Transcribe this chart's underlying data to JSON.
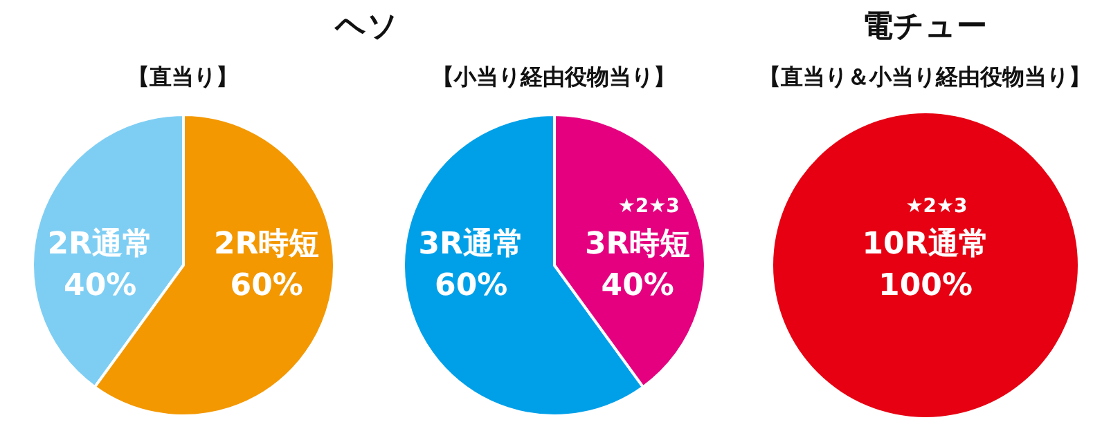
{
  "chart_data": [
    {
      "type": "pie",
      "title": "ヘソ",
      "subtitle": "【直当り】",
      "categories": [
        "2R通常",
        "2R時短"
      ],
      "values": [
        40,
        60
      ],
      "colors": [
        "#7ecef4",
        "#f39800"
      ],
      "value_labels": [
        "40%",
        "60%"
      ],
      "legend": false
    },
    {
      "type": "pie",
      "subtitle": "【小当り経由役物当り】",
      "categories": [
        "3R通常",
        "3R時短"
      ],
      "values": [
        60,
        40
      ],
      "colors": [
        "#00a0e9",
        "#e4007f"
      ],
      "value_labels": [
        "60%",
        "40%"
      ],
      "legend": false,
      "annotations": [
        {
          "text": "★2★3",
          "x": "3R時短"
        }
      ]
    },
    {
      "type": "pie",
      "title": "電チュー",
      "subtitle": "【直当り＆小当り経由役物当り】",
      "categories": [
        "10R通常"
      ],
      "values": [
        100
      ],
      "colors": [
        "#e60012"
      ],
      "value_labels": [
        "100%"
      ],
      "legend": false,
      "annotations": [
        {
          "text": "★2★3",
          "x": "10R通常"
        }
      ]
    }
  ]
}
